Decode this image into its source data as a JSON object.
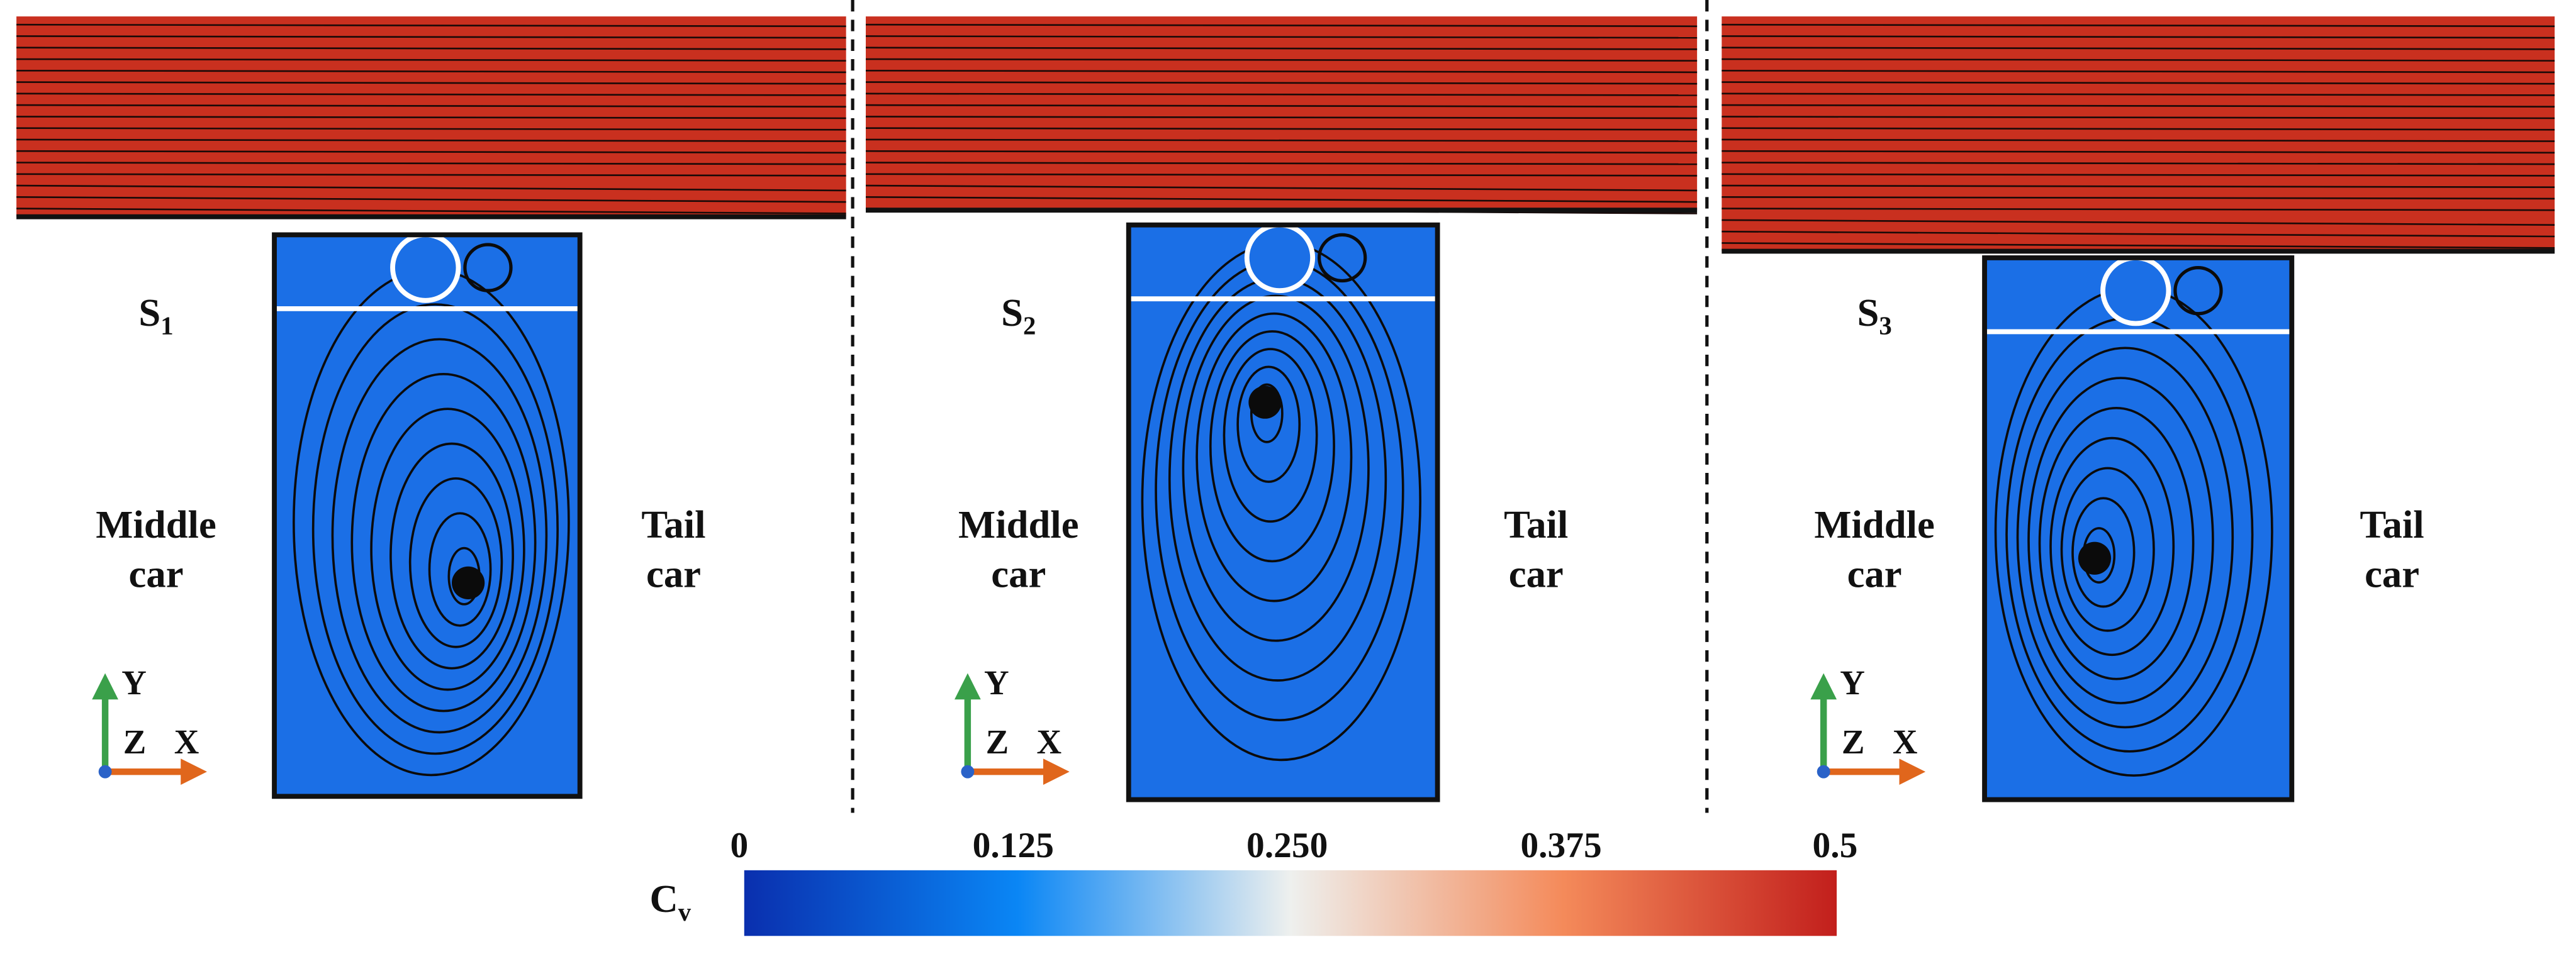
{
  "panels": [
    {
      "label": {
        "main": "S",
        "sub": "1"
      },
      "left_label": [
        "Middle",
        "car"
      ],
      "right_label": [
        "Tail",
        "car"
      ],
      "axes": {
        "y": "Y",
        "z": "Z",
        "x": "X"
      }
    },
    {
      "label": {
        "main": "S",
        "sub": "2"
      },
      "left_label": [
        "Middle",
        "car"
      ],
      "right_label": [
        "Tail",
        "car"
      ],
      "axes": {
        "y": "Y",
        "z": "Z",
        "x": "X"
      }
    },
    {
      "label": {
        "main": "S",
        "sub": "3"
      },
      "left_label": [
        "Middle",
        "car"
      ],
      "right_label": [
        "Tail",
        "car"
      ],
      "axes": {
        "y": "Y",
        "z": "Z",
        "x": "X"
      }
    }
  ],
  "colorbar": {
    "title": {
      "main": "C",
      "sub": "v"
    },
    "ticks": [
      "0",
      "0.125",
      "0.250",
      "0.375",
      "0.5"
    ]
  }
}
